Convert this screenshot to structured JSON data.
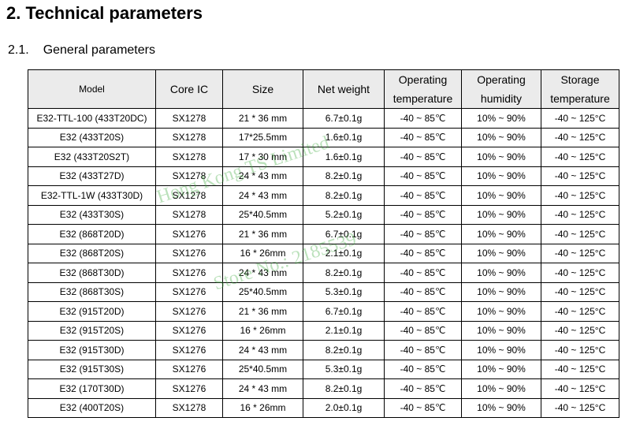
{
  "heading": {
    "title": "2. Technical parameters",
    "section_number": "2.1.",
    "section_title": "General parameters"
  },
  "table": {
    "headers": [
      "Model",
      "Core IC",
      "Size",
      "Net weight",
      "Operating temperature",
      "Operating humidity",
      "Storage temperature"
    ],
    "rows": [
      [
        "E32-TTL-100 (433T20DC)",
        "SX1278",
        "21 * 36 mm",
        "6.7±0.1g",
        "-40 ~ 85℃",
        "10% ~ 90%",
        "-40 ~ 125°C"
      ],
      [
        "E32 (433T20S)",
        "SX1278",
        "17*25.5mm",
        "1.6±0.1g",
        "-40 ~ 85℃",
        "10% ~ 90%",
        "-40 ~ 125°C"
      ],
      [
        "E32 (433T20S2T)",
        "SX1278",
        "17 * 30 mm",
        "1.6±0.1g",
        "-40 ~ 85℃",
        "10% ~ 90%",
        "-40 ~ 125°C"
      ],
      [
        "E32 (433T27D)",
        "SX1278",
        "24 * 43 mm",
        "8.2±0.1g",
        "-40 ~ 85℃",
        "10% ~ 90%",
        "-40 ~ 125°C"
      ],
      [
        "E32-TTL-1W (433T30D)",
        "SX1278",
        "24 * 43 mm",
        "8.2±0.1g",
        "-40 ~ 85℃",
        "10% ~ 90%",
        "-40 ~ 125°C"
      ],
      [
        "E32 (433T30S)",
        "SX1278",
        "25*40.5mm",
        "5.2±0.1g",
        "-40 ~ 85℃",
        "10% ~ 90%",
        "-40 ~ 125°C"
      ],
      [
        "E32 (868T20D)",
        "SX1276",
        "21 * 36 mm",
        "6.7±0.1g",
        "-40 ~ 85℃",
        "10% ~ 90%",
        "-40 ~ 125°C"
      ],
      [
        "E32 (868T20S)",
        "SX1276",
        "16 * 26mm",
        "2.1±0.1g",
        "-40 ~ 85℃",
        "10% ~ 90%",
        "-40 ~ 125°C"
      ],
      [
        "E32 (868T30D)",
        "SX1276",
        "24 * 43 mm",
        "8.2±0.1g",
        "-40 ~ 85℃",
        "10% ~ 90%",
        "-40 ~ 125°C"
      ],
      [
        "E32 (868T30S)",
        "SX1276",
        "25*40.5mm",
        "5.3±0.1g",
        "-40 ~ 85℃",
        "10% ~ 90%",
        "-40 ~ 125°C"
      ],
      [
        "E32 (915T20D)",
        "SX1276",
        "21 * 36 mm",
        "6.7±0.1g",
        "-40 ~ 85℃",
        "10% ~ 90%",
        "-40 ~ 125°C"
      ],
      [
        "E32 (915T20S)",
        "SX1276",
        "16 * 26mm",
        "2.1±0.1g",
        "-40 ~ 85℃",
        "10% ~ 90%",
        "-40 ~ 125°C"
      ],
      [
        "E32 (915T30D)",
        "SX1276",
        "24 * 43 mm",
        "8.2±0.1g",
        "-40 ~ 85℃",
        "10% ~ 90%",
        "-40 ~ 125°C"
      ],
      [
        "E32 (915T30S)",
        "SX1276",
        "25*40.5mm",
        "5.3±0.1g",
        "-40 ~ 85℃",
        "10% ~ 90%",
        "-40 ~ 125°C"
      ],
      [
        "E32 (170T30D)",
        "SX1276",
        "24 * 43 mm",
        "8.2±0.1g",
        "-40 ~ 85℃",
        "10% ~ 90%",
        "-40 ~ 125°C"
      ],
      [
        "E32 (400T20S)",
        "SX1278",
        "16 * 26mm",
        "2.0±0.1g",
        "-40 ~ 85℃",
        "10% ~ 90%",
        "-40 ~ 125°C"
      ]
    ]
  },
  "watermark": [
    "Hong Kong TS Limited",
    "Store No.: 2185539"
  ]
}
